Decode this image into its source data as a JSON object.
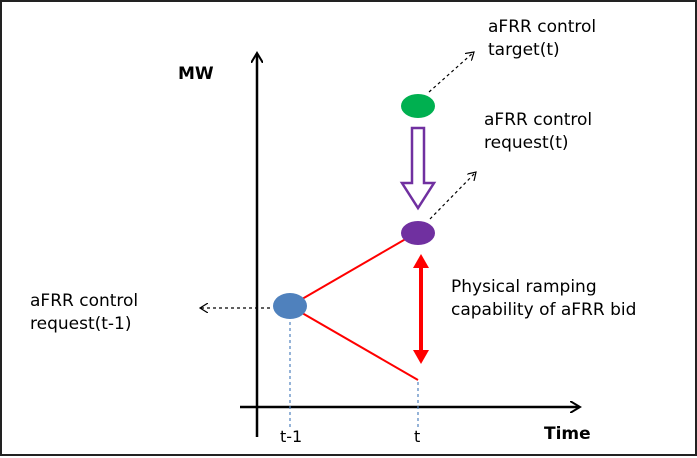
{
  "axes": {
    "y_label": "MW",
    "x_label": "Time"
  },
  "ticks": {
    "t_minus_1": "t-1",
    "t": "t"
  },
  "labels": {
    "target_line1": "aFRR control",
    "target_line2": "target(t)",
    "request_line1": "aFRR control",
    "request_line2": "request(t)",
    "prev_request_line1": "aFRR control",
    "prev_request_line2": "request(t-1)",
    "ramping_line1": "Physical ramping",
    "ramping_line2": "capability of aFRR bid"
  },
  "colors": {
    "target_point": "#00b050",
    "request_point": "#7030a0",
    "prev_request_point": "#4f81bd",
    "ramp_lines": "#ff0000",
    "hollow_arrow": "#7030a0",
    "guide_lines": "#4f81bd",
    "axes": "#000000"
  }
}
